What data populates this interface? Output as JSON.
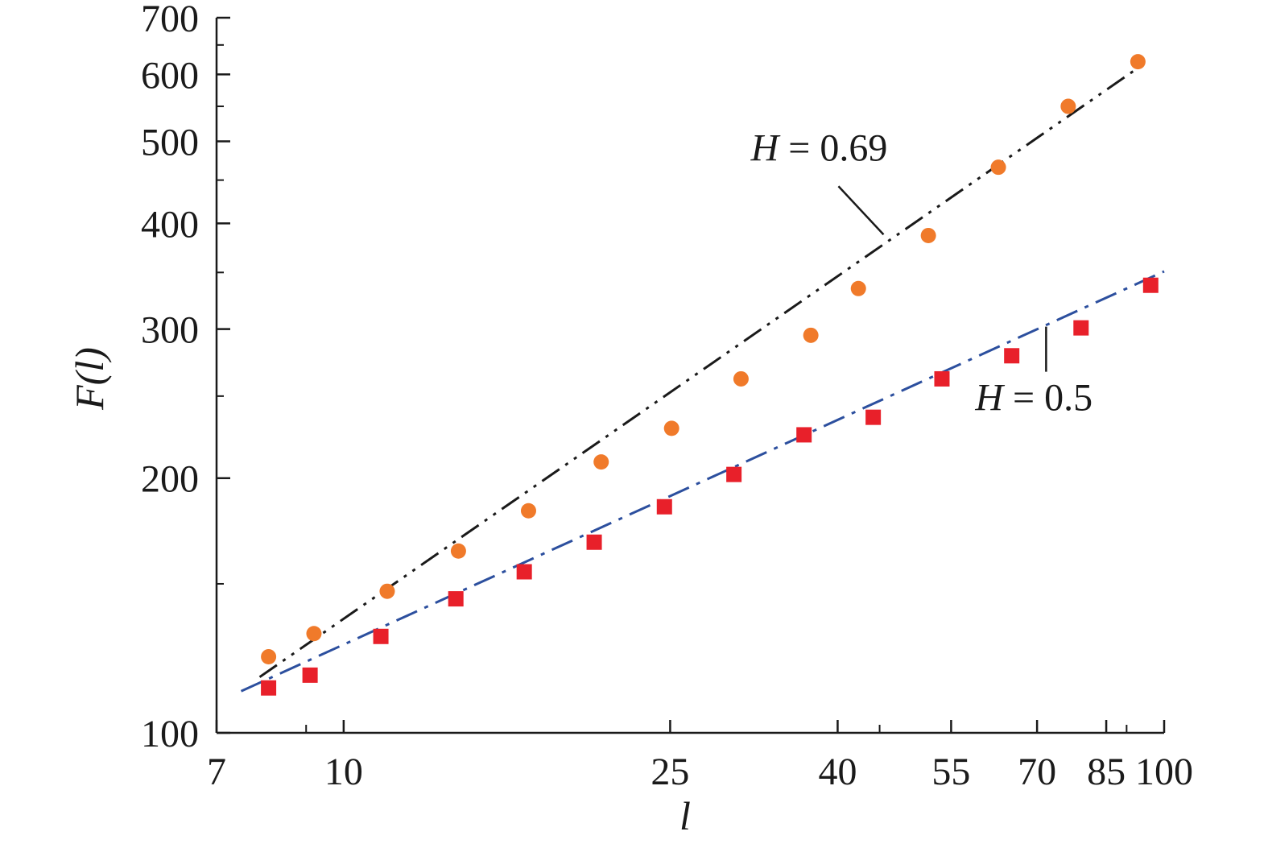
{
  "chart_data": {
    "type": "scatter",
    "title": "",
    "xlabel": "l",
    "ylabel": "F(l)",
    "xscale": "log",
    "yscale": "log",
    "xlim": [
      7,
      100
    ],
    "ylim": [
      100,
      700
    ],
    "x_ticks": [
      7,
      10,
      25,
      40,
      55,
      70,
      85,
      100
    ],
    "x_tick_labels": [
      "7",
      "10",
      "25",
      "40",
      "55",
      "70",
      "85",
      "100"
    ],
    "x_minor_ticks": [
      9,
      45,
      90
    ],
    "y_ticks": [
      100,
      200,
      300,
      400,
      500,
      600,
      700
    ],
    "y_tick_labels": [
      "100",
      "200",
      "300",
      "400",
      "500",
      "600",
      "700"
    ],
    "y_minor_ticks": [
      150,
      250,
      350,
      450,
      550,
      650
    ],
    "grid": false,
    "legend": "none",
    "series": [
      {
        "marker": "circle",
        "color": "#f07a2a",
        "x": [
          8.1,
          9.2,
          11.3,
          13.8,
          16.8,
          20.6,
          25.1,
          30.5,
          37.1,
          42.4,
          51.6,
          62.8,
          76.4,
          92.9
        ],
        "y": [
          123,
          131,
          147,
          164,
          183,
          209,
          229,
          262,
          295,
          335,
          387,
          466,
          550,
          621
        ]
      },
      {
        "marker": "square",
        "color": "#e8202a",
        "x": [
          8.1,
          9.1,
          11.1,
          13.7,
          16.6,
          20.2,
          24.6,
          29.9,
          36.4,
          44.2,
          53.6,
          65.2,
          79.2,
          96.3
        ],
        "y": [
          113,
          117,
          130,
          144,
          155,
          168,
          185,
          202,
          225,
          236,
          262,
          279,
          301,
          338
        ]
      }
    ],
    "fit_lines": [
      {
        "label": "H = 0.69",
        "color": "#1a1a1a",
        "style": "dash-dot-dot",
        "x": [
          7.9,
          93
        ],
        "y": [
          116.4,
          611
        ]
      },
      {
        "label": "H = 0.5",
        "color": "#2c4f9e",
        "style": "dash-dot",
        "x": [
          7.5,
          100
        ],
        "y": [
          112,
          351
        ]
      }
    ],
    "annotations": [
      {
        "text_italic": "H",
        "text_rest": " = 0.69",
        "anchor_x": 45.5,
        "anchor_y": 388,
        "placement": "above-left"
      },
      {
        "text_italic": "H",
        "text_rest": " = 0.5",
        "anchor_x": 71.8,
        "anchor_y": 302,
        "placement": "below"
      }
    ]
  }
}
